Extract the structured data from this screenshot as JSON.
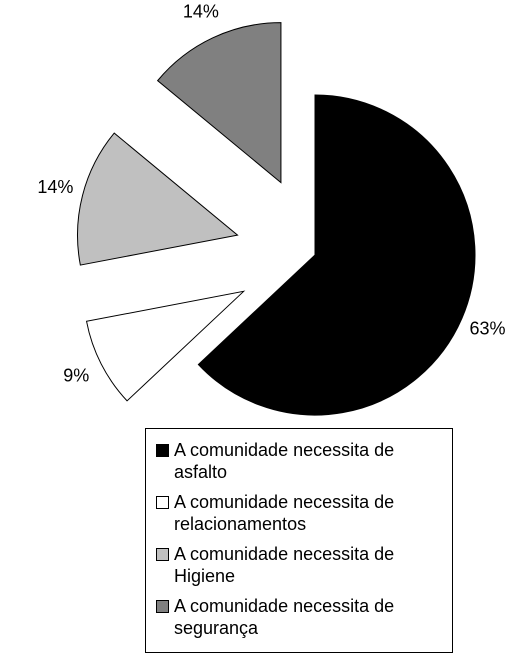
{
  "chart_data": {
    "type": "pie",
    "categories": [
      "A comunidade necessita de asfalto",
      "A comunidade necessita de relacionamentos",
      "A comunidade necessita de Higiene",
      "A comunidade necessita de segurança"
    ],
    "values": [
      63,
      9,
      14,
      14
    ],
    "value_labels": [
      "63%",
      "9%",
      "14%",
      "14%"
    ],
    "colors": [
      "#000000",
      "#ffffff",
      "#c0c0c0",
      "#808080"
    ],
    "legend": "bottom"
  }
}
